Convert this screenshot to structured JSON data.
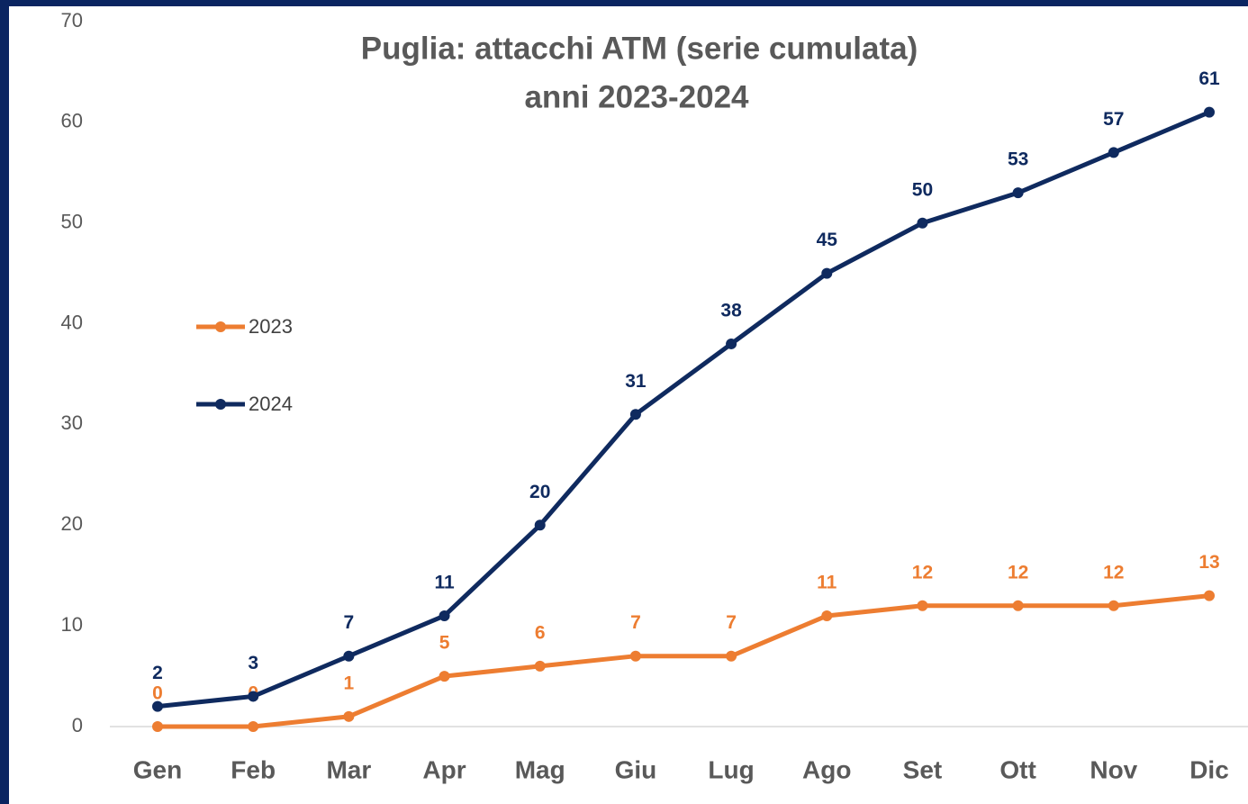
{
  "chart_data": {
    "type": "line",
    "title": [
      "Puglia: attacchi ATM (serie cumulata)",
      "anni 2023-2024"
    ],
    "categories": [
      "Gen",
      "Feb",
      "Mar",
      "Apr",
      "Mag",
      "Giu",
      "Lug",
      "Ago",
      "Set",
      "Ott",
      "Nov",
      "Dic"
    ],
    "series": [
      {
        "name": "2023",
        "color": "#ed7d31",
        "values": [
          0,
          0,
          1,
          5,
          6,
          7,
          7,
          11,
          12,
          12,
          12,
          13
        ]
      },
      {
        "name": "2024",
        "color": "#0f2a5f",
        "values": [
          2,
          3,
          7,
          11,
          20,
          31,
          38,
          45,
          50,
          53,
          57,
          61
        ]
      }
    ],
    "ylim": [
      0,
      70
    ],
    "yticks": [
      0,
      10,
      20,
      30,
      40,
      50,
      60,
      70
    ],
    "grid": false,
    "legend": "left"
  }
}
